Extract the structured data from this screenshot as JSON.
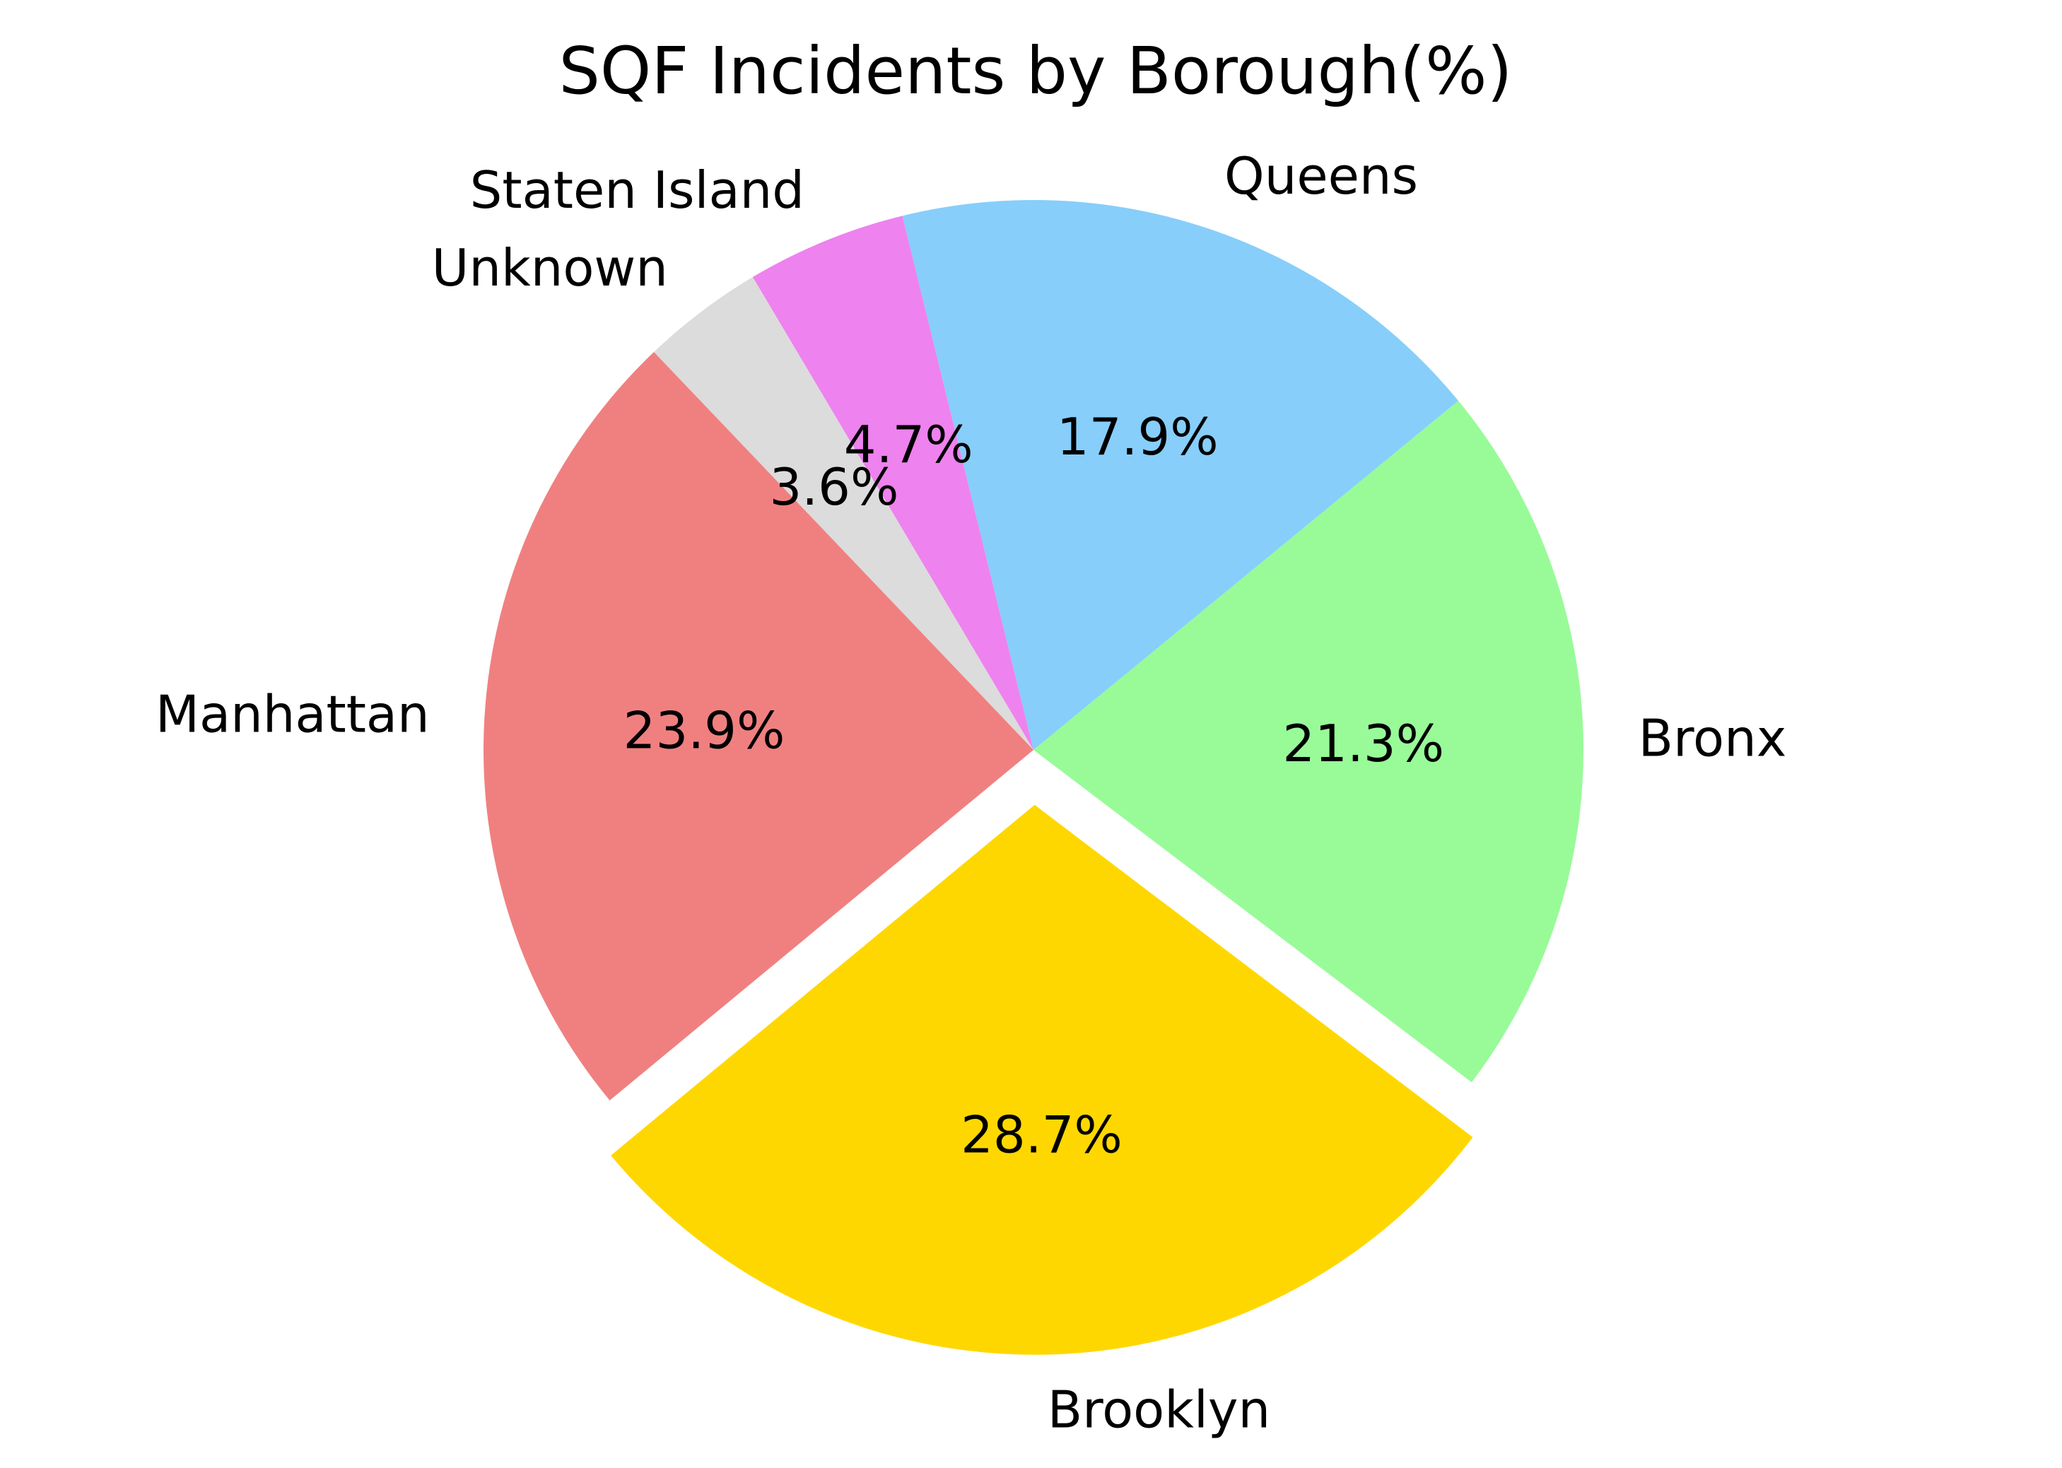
{
  "chart_data": {
    "type": "pie",
    "title": "SQF Incidents by Borough(%)",
    "slices": [
      {
        "label": "Brooklyn",
        "value": 28.7,
        "pct_label": "28.7%",
        "color": "#FFD700",
        "exploded": true
      },
      {
        "label": "Bronx",
        "value": 21.3,
        "pct_label": "21.3%",
        "color": "#98FB98",
        "exploded": false
      },
      {
        "label": "Queens",
        "value": 17.9,
        "pct_label": "17.9%",
        "color": "#87CEFA",
        "exploded": false
      },
      {
        "label": "Staten Island",
        "value": 4.7,
        "pct_label": "4.7%",
        "color": "#EE82EE",
        "exploded": false
      },
      {
        "label": "Unknown",
        "value": 3.6,
        "pct_label": "3.6%",
        "color": "#DCDCDC",
        "exploded": false
      },
      {
        "label": "Manhattan",
        "value": 23.9,
        "pct_label": "23.9%",
        "color": "#F08080",
        "exploded": false
      }
    ],
    "start_angle_deg": 219.6,
    "direction": "counterclockwise",
    "legend": "none"
  }
}
